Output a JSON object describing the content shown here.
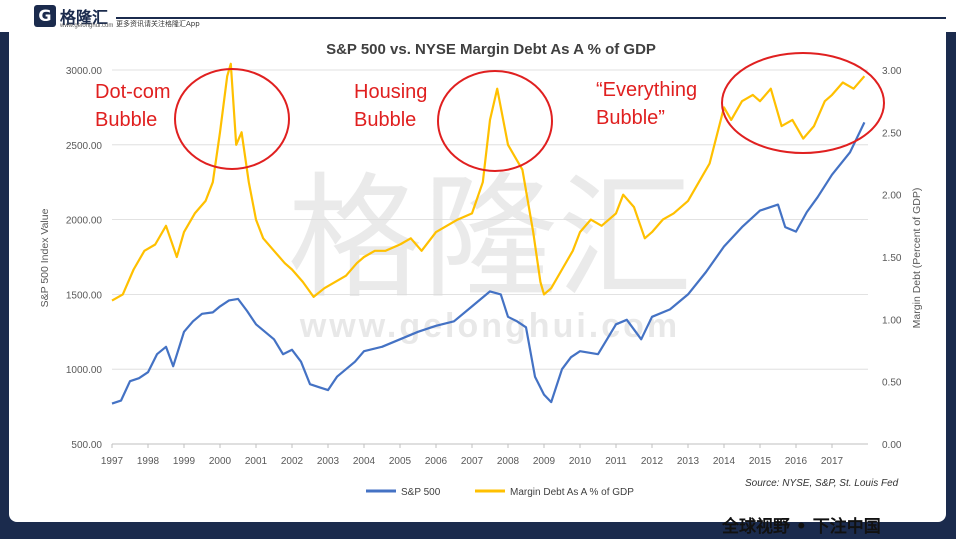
{
  "header": {
    "logo_mark": "G",
    "brand_cn": "格隆汇",
    "brand_url": "www.gelonghui.com",
    "tagline": "更多资讯请关注格隆汇App"
  },
  "footer": {
    "slogan": "全球视野 • 下注中国",
    "source": "Source: NYSE, S&P, St. Louis Fed"
  },
  "watermark": {
    "cn": "格隆汇",
    "url": "www.gelonghui.com"
  },
  "annotations": [
    {
      "line1": "Dot-com",
      "line2": "Bubble"
    },
    {
      "line1": "Housing",
      "line2": "Bubble"
    },
    {
      "line1": "“Everything",
      "line2": "Bubble”"
    }
  ],
  "colors": {
    "sp500": "#4472c4",
    "margin": "#ffc000",
    "annotation": "#e02020"
  },
  "chart_data": {
    "type": "line",
    "title": "S&P 500 vs. NYSE Margin Debt As A % of GDP",
    "ylabel": "S&P 500 Index Value",
    "y2label": "Margin Debt (Percent of GDP)",
    "ylim": [
      500,
      3000
    ],
    "y2lim": [
      0,
      3
    ],
    "yticks": [
      "500.00",
      "1000.00",
      "1500.00",
      "2000.00",
      "2500.00",
      "3000.00"
    ],
    "y2ticks": [
      "0.00",
      "0.50",
      "1.00",
      "1.50",
      "2.00",
      "2.50",
      "3.00"
    ],
    "xticks": [
      "1997",
      "1998",
      "1999",
      "2000",
      "2001",
      "2002",
      "2003",
      "2004",
      "2005",
      "2006",
      "2007",
      "2008",
      "2009",
      "2010",
      "2011",
      "2012",
      "2013",
      "2014",
      "2015",
      "2016",
      "2017"
    ],
    "legend_position": "bottom",
    "series": [
      {
        "name": "S&P 500",
        "axis": "left",
        "x": [
          1997.0,
          1997.25,
          1997.5,
          1997.75,
          1998.0,
          1998.25,
          1998.5,
          1998.7,
          1999.0,
          1999.25,
          1999.5,
          1999.8,
          2000.0,
          2000.25,
          2000.5,
          2000.75,
          2001.0,
          2001.25,
          2001.5,
          2001.75,
          2002.0,
          2002.25,
          2002.5,
          2002.75,
          2003.0,
          2003.25,
          2003.5,
          2003.75,
          2004.0,
          2004.5,
          2005.0,
          2005.5,
          2006.0,
          2006.5,
          2007.0,
          2007.5,
          2007.8,
          2008.0,
          2008.25,
          2008.5,
          2008.75,
          2009.0,
          2009.2,
          2009.5,
          2009.75,
          2010.0,
          2010.5,
          2010.75,
          2011.0,
          2011.3,
          2011.7,
          2012.0,
          2012.5,
          2013.0,
          2013.5,
          2014.0,
          2014.5,
          2015.0,
          2015.5,
          2015.7,
          2016.0,
          2016.3,
          2016.6,
          2017.0,
          2017.5,
          2017.9
        ],
        "values": [
          770,
          790,
          920,
          940,
          980,
          1100,
          1150,
          1020,
          1250,
          1320,
          1370,
          1380,
          1420,
          1460,
          1470,
          1390,
          1300,
          1250,
          1200,
          1100,
          1130,
          1050,
          900,
          880,
          860,
          950,
          1000,
          1050,
          1120,
          1150,
          1200,
          1250,
          1290,
          1320,
          1420,
          1520,
          1500,
          1350,
          1320,
          1280,
          950,
          830,
          780,
          1000,
          1080,
          1120,
          1100,
          1200,
          1300,
          1330,
          1200,
          1350,
          1400,
          1500,
          1650,
          1820,
          1950,
          2060,
          2100,
          1950,
          1920,
          2050,
          2150,
          2300,
          2450,
          2650
        ]
      },
      {
        "name": "Margin Debt As A % of GDP",
        "axis": "right",
        "x": [
          1997.0,
          1997.3,
          1997.6,
          1997.9,
          1998.2,
          1998.5,
          1998.8,
          1999.0,
          1999.3,
          1999.6,
          1999.8,
          2000.0,
          2000.2,
          2000.3,
          2000.45,
          2000.6,
          2000.8,
          2001.0,
          2001.2,
          2001.5,
          2001.8,
          2002.0,
          2002.3,
          2002.6,
          2002.9,
          2003.2,
          2003.5,
          2003.8,
          2004.0,
          2004.3,
          2004.6,
          2005.0,
          2005.3,
          2005.6,
          2006.0,
          2006.3,
          2006.6,
          2007.0,
          2007.3,
          2007.5,
          2007.7,
          2008.0,
          2008.2,
          2008.4,
          2008.7,
          2008.9,
          2009.0,
          2009.2,
          2009.5,
          2009.8,
          2010.0,
          2010.3,
          2010.6,
          2011.0,
          2011.2,
          2011.5,
          2011.8,
          2012.0,
          2012.3,
          2012.6,
          2013.0,
          2013.3,
          2013.6,
          2014.0,
          2014.2,
          2014.5,
          2014.8,
          2015.0,
          2015.3,
          2015.6,
          2015.9,
          2016.2,
          2016.5,
          2016.8,
          2017.0,
          2017.3,
          2017.6,
          2017.9
        ],
        "values": [
          1.15,
          1.2,
          1.4,
          1.55,
          1.6,
          1.75,
          1.5,
          1.7,
          1.85,
          1.95,
          2.1,
          2.5,
          2.95,
          3.05,
          2.4,
          2.5,
          2.1,
          1.8,
          1.65,
          1.55,
          1.45,
          1.4,
          1.3,
          1.18,
          1.25,
          1.3,
          1.35,
          1.45,
          1.5,
          1.55,
          1.55,
          1.6,
          1.65,
          1.55,
          1.7,
          1.75,
          1.8,
          1.85,
          2.1,
          2.6,
          2.85,
          2.4,
          2.3,
          2.2,
          1.7,
          1.3,
          1.2,
          1.25,
          1.4,
          1.55,
          1.7,
          1.8,
          1.75,
          1.85,
          2.0,
          1.9,
          1.65,
          1.7,
          1.8,
          1.85,
          1.95,
          2.1,
          2.25,
          2.7,
          2.6,
          2.75,
          2.8,
          2.75,
          2.85,
          2.55,
          2.6,
          2.45,
          2.55,
          2.75,
          2.8,
          2.9,
          2.85,
          2.95
        ]
      }
    ]
  }
}
